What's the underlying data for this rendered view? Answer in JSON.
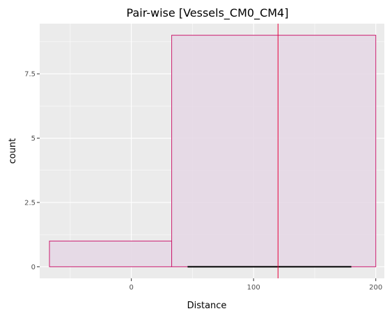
{
  "chart_data": {
    "type": "bar",
    "title": "Pair-wise [Vessels_CM0_CM4]",
    "xlabel": "Distance",
    "ylabel": "count",
    "xlim": [
      -75,
      207
    ],
    "ylim": [
      -0.45,
      9.45
    ],
    "x_ticks": [
      {
        "value": 0,
        "label": "0"
      },
      {
        "value": 100,
        "label": "100"
      },
      {
        "value": 200,
        "label": "200"
      }
    ],
    "y_ticks": [
      {
        "value": 0,
        "label": "0"
      },
      {
        "value": 2.5,
        "label": "2.5"
      },
      {
        "value": 5,
        "label": "5"
      },
      {
        "value": 7.5,
        "label": "7.5"
      }
    ],
    "x_minor_gridlines": [
      -50,
      50,
      150
    ],
    "y_minor_gridlines": [
      1.25,
      3.75,
      6.25,
      8.75
    ],
    "bins": [
      {
        "x_start": -67,
        "x_end": 33,
        "count": 1
      },
      {
        "x_start": 33,
        "x_end": 200,
        "count": 9
      }
    ],
    "vline": {
      "x": 120
    },
    "range_segment": {
      "x_start": 46,
      "x_end": 180,
      "y": 0
    },
    "grid": true,
    "legend": "none",
    "colors": {
      "panel_background": "#ebebeb",
      "gridline": "#ffffff",
      "bar_fill": "#e6d8e6",
      "bar_edge": "#cc1f6f",
      "vline": "#e8003c",
      "segment": "#000000",
      "tick_mark": "#333333"
    }
  }
}
